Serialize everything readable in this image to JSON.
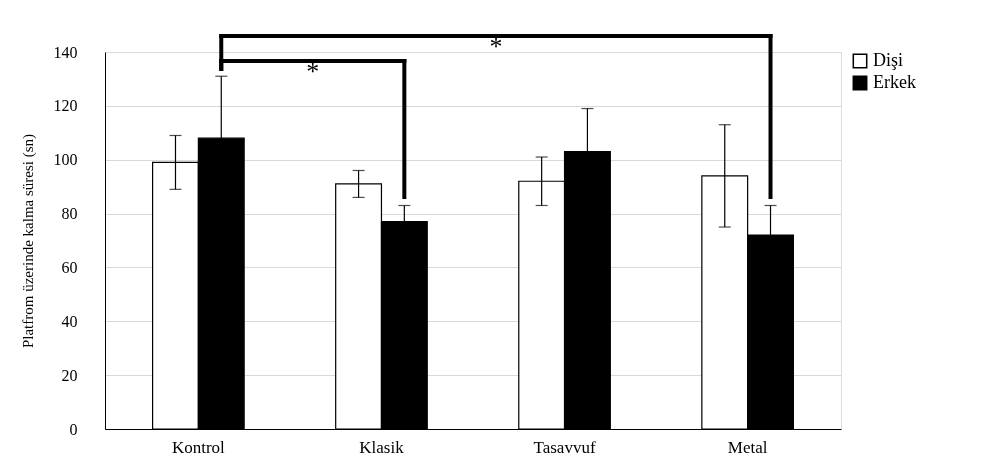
{
  "chart_data": {
    "type": "bar",
    "ylabel": "Platfrom üzerinde kalma süresi (sn)",
    "categories": [
      "Kontrol",
      "Klasik",
      "Tasavvuf",
      "Metal"
    ],
    "series": [
      {
        "name": "Dişi",
        "color": "#ffffff",
        "values": [
          99,
          91,
          92,
          94
        ],
        "errors": [
          10,
          5,
          9,
          19
        ]
      },
      {
        "name": "Erkek",
        "color": "#000000",
        "values": [
          108,
          77,
          103,
          72
        ],
        "errors": [
          23,
          6,
          16,
          11
        ]
      }
    ],
    "ylim": [
      0,
      140
    ],
    "yticks": [
      0,
      20,
      40,
      60,
      80,
      100,
      120,
      140
    ],
    "grid": "y",
    "legend": "right",
    "annotations": [
      "*",
      "*"
    ]
  }
}
